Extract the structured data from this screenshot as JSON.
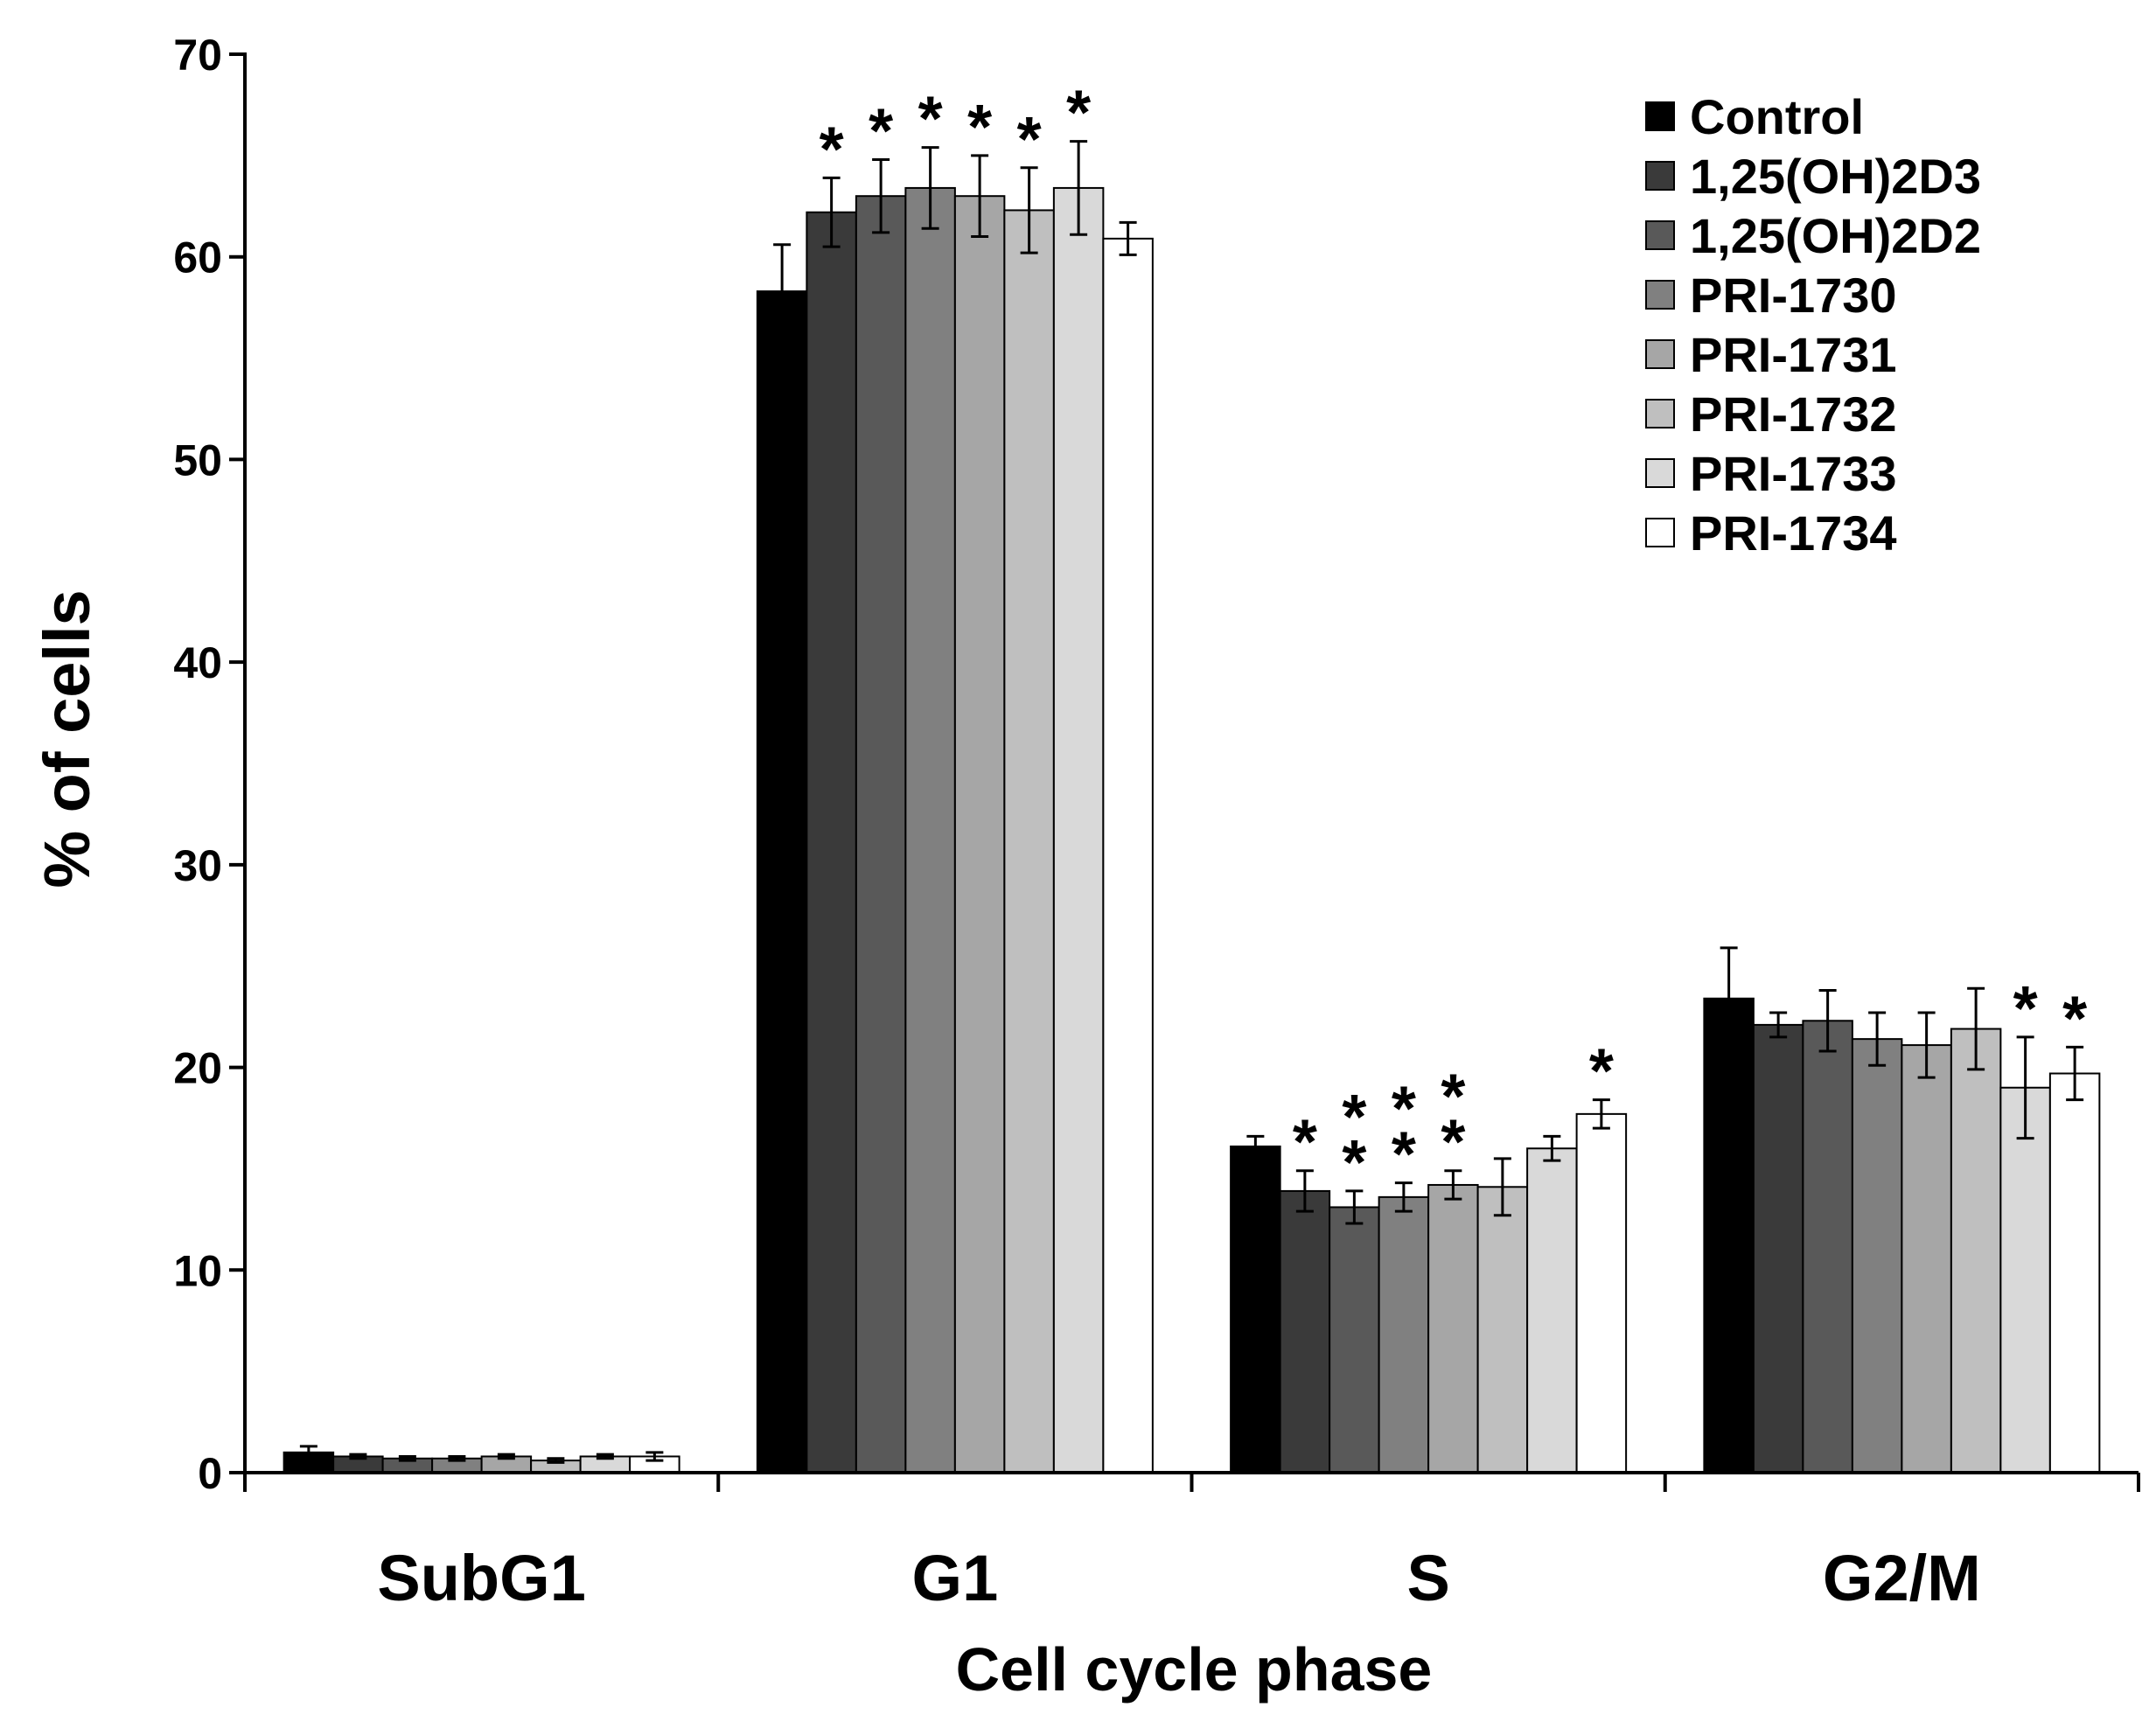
{
  "chart_data": {
    "type": "bar",
    "title": "",
    "xlabel": "Cell cycle phase",
    "ylabel": "% of cells",
    "ylim": [
      0,
      70
    ],
    "yticks": [
      "0",
      "10",
      "20",
      "30",
      "40",
      "50",
      "60",
      "70"
    ],
    "categories": [
      "SubG1",
      "G1",
      "S",
      "G2/M"
    ],
    "grid": false,
    "legend_position": "top-right",
    "series": [
      {
        "name": "Control",
        "color": "#000000",
        "values": [
          1.0,
          58.3,
          16.1,
          23.4
        ],
        "errors": [
          0.3,
          2.3,
          0.5,
          2.5
        ],
        "significance": [
          "",
          "",
          "",
          ""
        ]
      },
      {
        "name": "1,25(OH)2D3",
        "color": "#3a3a3a",
        "values": [
          0.8,
          62.2,
          13.9,
          22.1
        ],
        "errors": [
          0.1,
          1.7,
          1.0,
          0.6
        ],
        "significance": [
          "",
          "*",
          "*",
          ""
        ]
      },
      {
        "name": "1,25(OH)2D2",
        "color": "#595959",
        "values": [
          0.7,
          63.0,
          13.1,
          22.3
        ],
        "errors": [
          0.1,
          1.8,
          0.8,
          1.5
        ],
        "significance": [
          "",
          "*",
          "**",
          ""
        ]
      },
      {
        "name": "PRI-1730",
        "color": "#808080",
        "values": [
          0.7,
          63.4,
          13.6,
          21.4
        ],
        "errors": [
          0.1,
          2.0,
          0.7,
          1.3
        ],
        "significance": [
          "",
          "*",
          "**",
          ""
        ]
      },
      {
        "name": "PRI-1731",
        "color": "#a6a6a6",
        "values": [
          0.8,
          63.0,
          14.2,
          21.1
        ],
        "errors": [
          0.1,
          2.0,
          0.7,
          1.6
        ],
        "significance": [
          "",
          "*",
          "**",
          ""
        ]
      },
      {
        "name": "PRI-1732",
        "color": "#bfbfbf",
        "values": [
          0.6,
          62.3,
          14.1,
          21.9
        ],
        "errors": [
          0.1,
          2.1,
          1.4,
          2.0
        ],
        "significance": [
          "",
          "*",
          "",
          ""
        ]
      },
      {
        "name": "PRI-1733",
        "color": "#d9d9d9",
        "values": [
          0.8,
          63.4,
          16.0,
          19.0
        ],
        "errors": [
          0.1,
          2.3,
          0.6,
          2.5
        ],
        "significance": [
          "",
          "*",
          "",
          "*"
        ]
      },
      {
        "name": "PRI-1734",
        "color": "#ffffff",
        "values": [
          0.8,
          60.9,
          17.7,
          19.7
        ],
        "errors": [
          0.2,
          0.8,
          0.7,
          1.3
        ],
        "significance": [
          "",
          "",
          "*",
          "*"
        ]
      }
    ]
  }
}
